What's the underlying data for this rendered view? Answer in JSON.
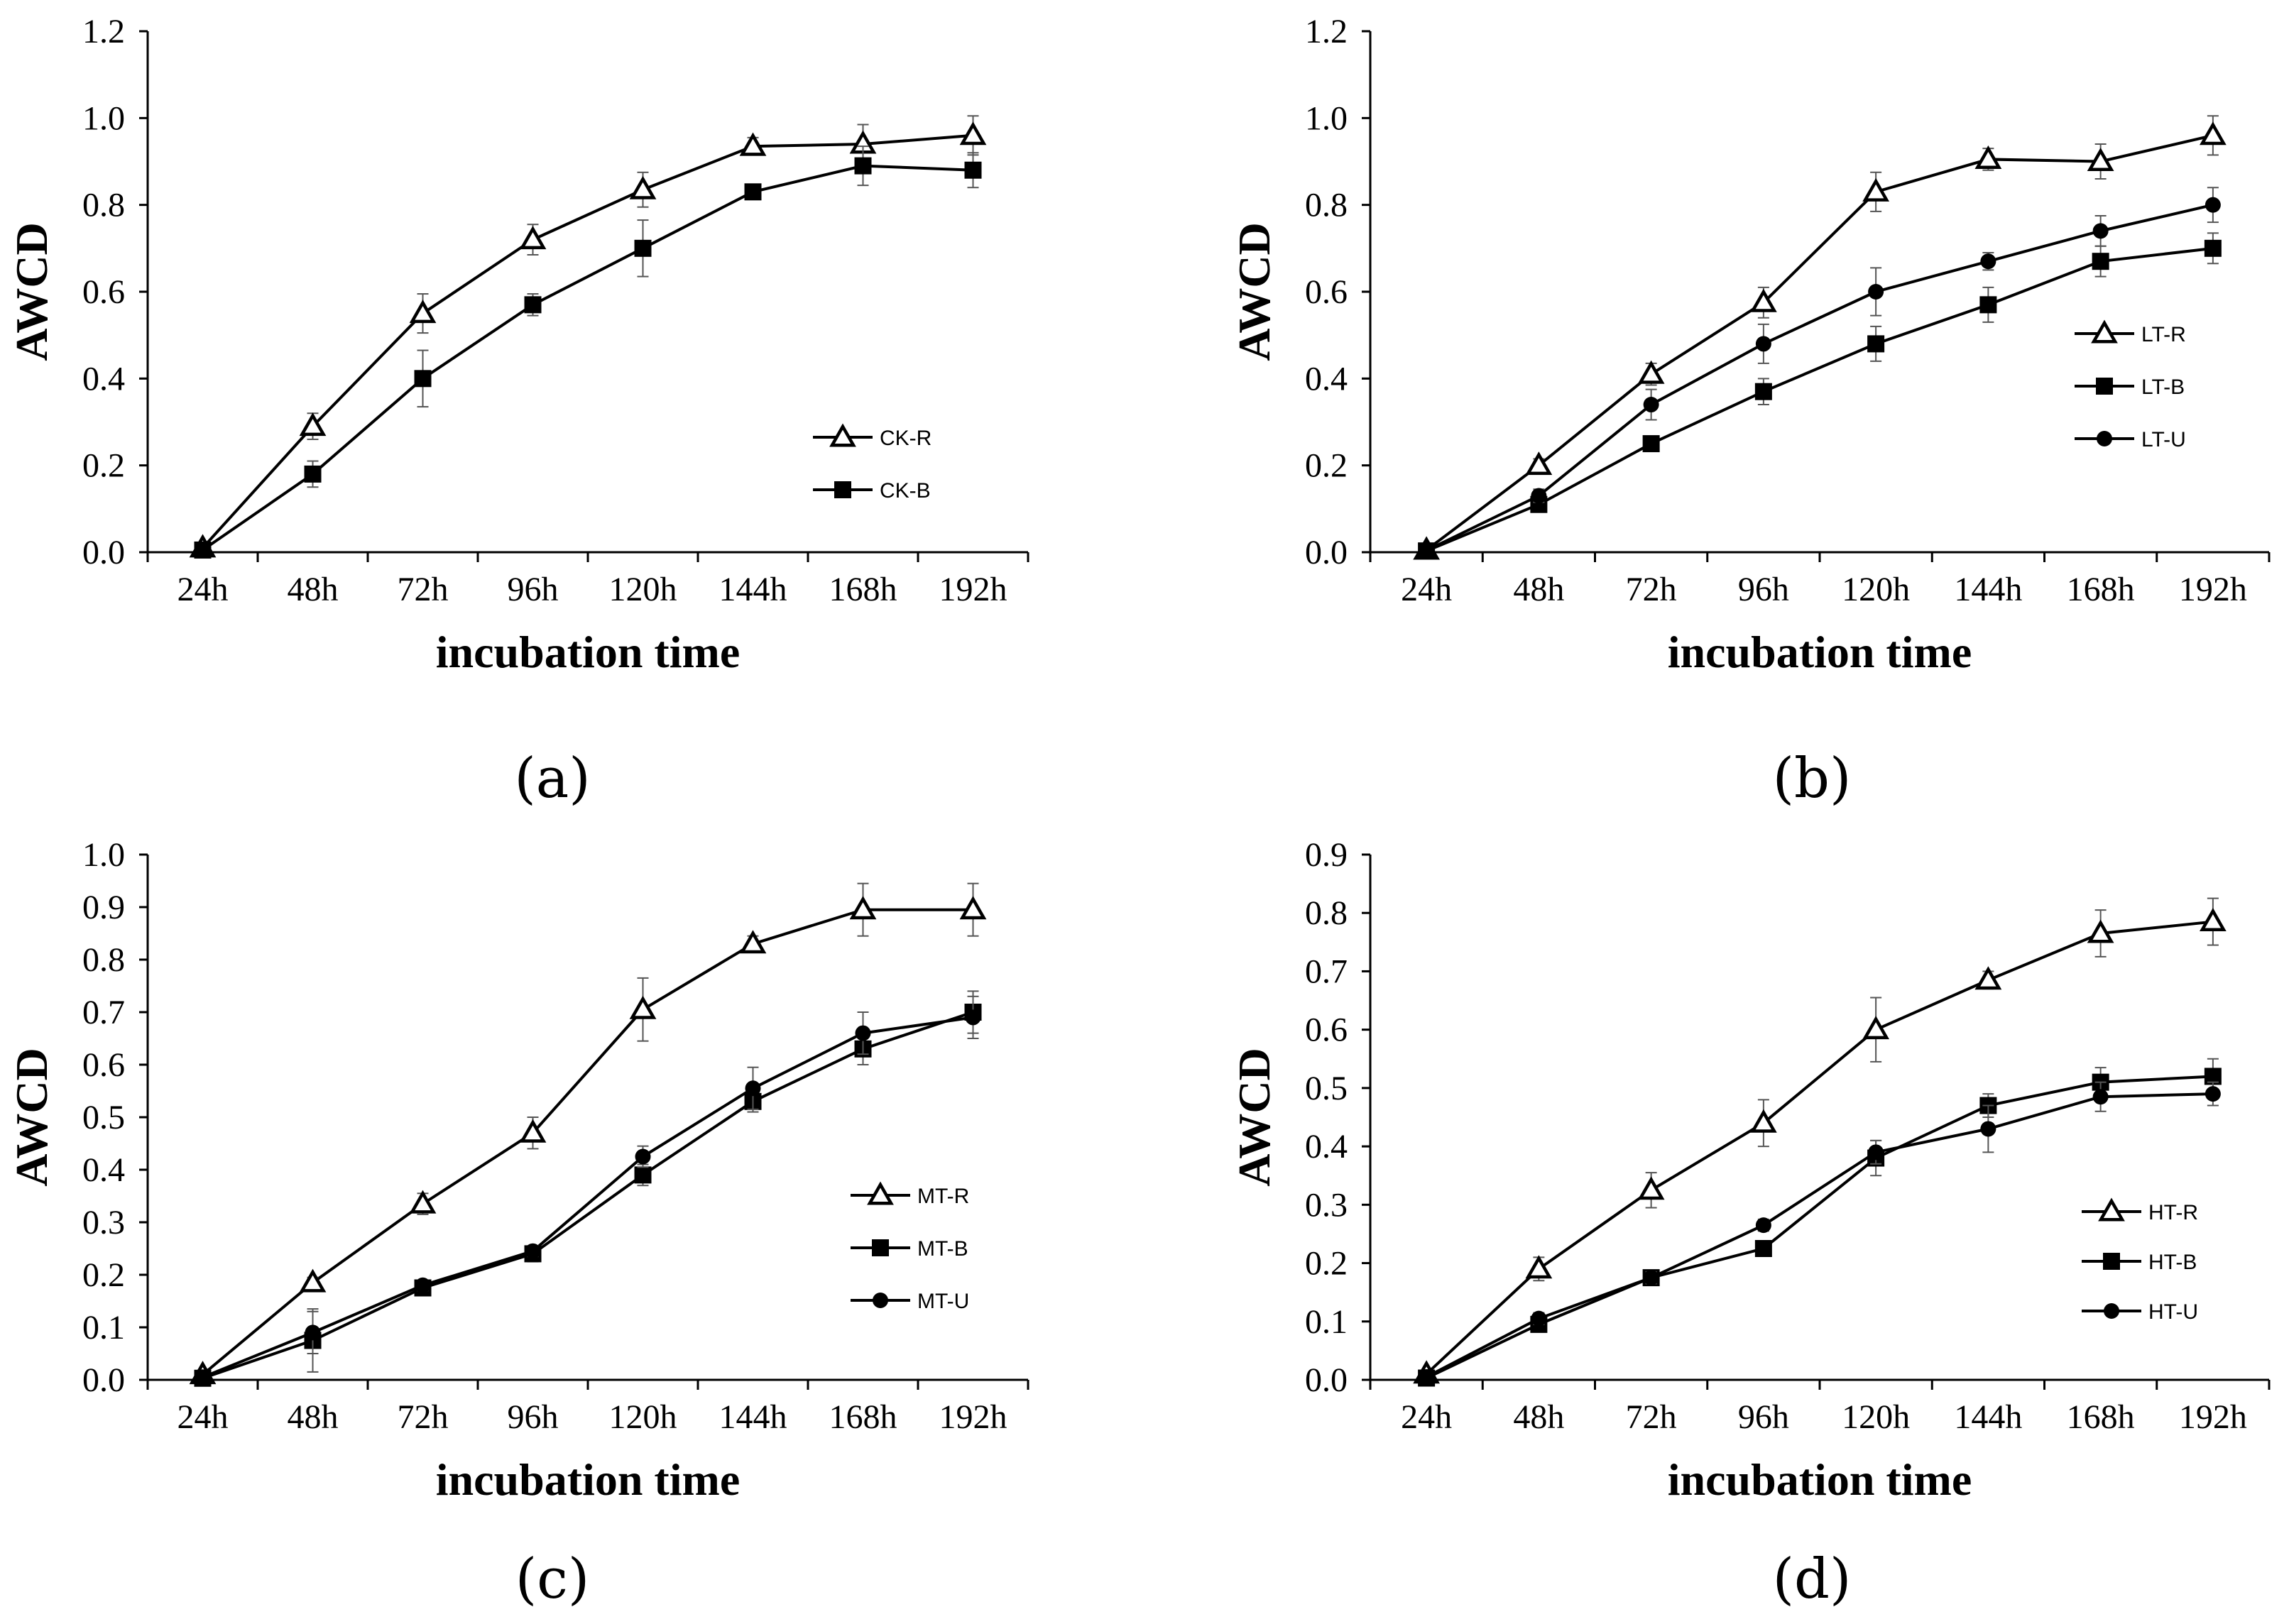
{
  "chart_data": [
    {
      "type": "line",
      "panel_label": "(a)",
      "categories": [
        "24h",
        "48h",
        "72h",
        "96h",
        "120h",
        "144h",
        "168h",
        "192h"
      ],
      "xlabel": "incubation time",
      "ylabel": "AWCD",
      "ylim": [
        0,
        1.2
      ],
      "yticks": [
        "0.0",
        "0.2",
        "0.4",
        "0.6",
        "0.8",
        "1.0",
        "1.2"
      ],
      "legend_position": "right-center",
      "series": [
        {
          "name": "CK-R",
          "marker": "open-triangle",
          "values": [
            0.01,
            0.29,
            0.55,
            0.72,
            0.835,
            0.935,
            0.94,
            0.96
          ],
          "errors": [
            0.01,
            0.03,
            0.045,
            0.035,
            0.04,
            0.02,
            0.045,
            0.045
          ]
        },
        {
          "name": "CK-B",
          "marker": "filled-square",
          "values": [
            0.005,
            0.18,
            0.4,
            0.57,
            0.7,
            0.83,
            0.89,
            0.88
          ],
          "errors": [
            0.005,
            0.03,
            0.065,
            0.025,
            0.065,
            0.015,
            0.045,
            0.04
          ]
        }
      ]
    },
    {
      "type": "line",
      "panel_label": "(b)",
      "categories": [
        "24h",
        "48h",
        "72h",
        "96h",
        "120h",
        "144h",
        "168h",
        "192h"
      ],
      "xlabel": "incubation time",
      "ylabel": "AWCD",
      "ylim": [
        0,
        1.2
      ],
      "yticks": [
        "0.0",
        "0.2",
        "0.4",
        "0.6",
        "0.8",
        "1.0",
        "1.2"
      ],
      "legend_position": "right-center",
      "series": [
        {
          "name": "LT-R",
          "marker": "open-triangle",
          "values": [
            0.005,
            0.2,
            0.41,
            0.575,
            0.83,
            0.905,
            0.9,
            0.96
          ],
          "errors": [
            0.005,
            0.015,
            0.025,
            0.035,
            0.045,
            0.025,
            0.04,
            0.045
          ]
        },
        {
          "name": "LT-B",
          "marker": "filled-square",
          "values": [
            0.003,
            0.11,
            0.25,
            0.37,
            0.48,
            0.57,
            0.67,
            0.7
          ],
          "errors": [
            0.003,
            0.01,
            0.015,
            0.03,
            0.04,
            0.04,
            0.035,
            0.035
          ]
        },
        {
          "name": "LT-U",
          "marker": "filled-circle",
          "values": [
            0.004,
            0.13,
            0.34,
            0.48,
            0.6,
            0.67,
            0.74,
            0.8
          ],
          "errors": [
            0.004,
            0.015,
            0.035,
            0.045,
            0.055,
            0.02,
            0.035,
            0.04
          ]
        }
      ]
    },
    {
      "type": "line",
      "panel_label": "(c)",
      "categories": [
        "24h",
        "48h",
        "72h",
        "96h",
        "120h",
        "144h",
        "168h",
        "192h"
      ],
      "xlabel": "incubation time",
      "ylabel": "AWCD",
      "ylim": [
        0,
        1.0
      ],
      "yticks": [
        "0.0",
        "0.1",
        "0.2",
        "0.3",
        "0.4",
        "0.5",
        "0.6",
        "0.7",
        "0.8",
        "0.9",
        "1.0"
      ],
      "legend_position": "right-center",
      "series": [
        {
          "name": "MT-R",
          "marker": "open-triangle",
          "values": [
            0.01,
            0.185,
            0.335,
            0.47,
            0.705,
            0.83,
            0.895,
            0.895
          ],
          "errors": [
            0.005,
            0.01,
            0.02,
            0.03,
            0.06,
            0.015,
            0.05,
            0.05
          ]
        },
        {
          "name": "MT-B",
          "marker": "filled-square",
          "values": [
            0.003,
            0.075,
            0.175,
            0.24,
            0.39,
            0.53,
            0.63,
            0.7
          ],
          "errors": [
            0.003,
            0.06,
            0.01,
            0.015,
            0.02,
            0.02,
            0.03,
            0.04
          ]
        },
        {
          "name": "MT-U",
          "marker": "filled-circle",
          "values": [
            0.005,
            0.09,
            0.18,
            0.245,
            0.425,
            0.555,
            0.66,
            0.69
          ],
          "errors": [
            0.005,
            0.04,
            0.01,
            0.01,
            0.02,
            0.04,
            0.04,
            0.04
          ]
        }
      ]
    },
    {
      "type": "line",
      "panel_label": "(d)",
      "categories": [
        "24h",
        "48h",
        "72h",
        "96h",
        "120h",
        "144h",
        "168h",
        "192h"
      ],
      "xlabel": "incubation time",
      "ylabel": "AWCD",
      "ylim": [
        0,
        0.9
      ],
      "yticks": [
        "0.0",
        "0.1",
        "0.2",
        "0.3",
        "0.4",
        "0.5",
        "0.6",
        "0.7",
        "0.8",
        "0.9"
      ],
      "legend_position": "right-center",
      "series": [
        {
          "name": "HT-R",
          "marker": "open-triangle",
          "values": [
            0.01,
            0.19,
            0.325,
            0.44,
            0.6,
            0.685,
            0.765,
            0.785
          ],
          "errors": [
            0.005,
            0.02,
            0.03,
            0.04,
            0.055,
            0.015,
            0.04,
            0.04
          ]
        },
        {
          "name": "HT-B",
          "marker": "filled-square",
          "values": [
            0.003,
            0.095,
            0.175,
            0.225,
            0.38,
            0.47,
            0.51,
            0.52
          ],
          "errors": [
            0.003,
            0.01,
            0.01,
            0.01,
            0.03,
            0.02,
            0.025,
            0.03
          ]
        },
        {
          "name": "HT-U",
          "marker": "filled-circle",
          "values": [
            0.005,
            0.105,
            0.175,
            0.265,
            0.39,
            0.43,
            0.485,
            0.49
          ],
          "errors": [
            0.005,
            0.01,
            0.01,
            0.01,
            0.02,
            0.04,
            0.025,
            0.02
          ]
        }
      ]
    }
  ]
}
